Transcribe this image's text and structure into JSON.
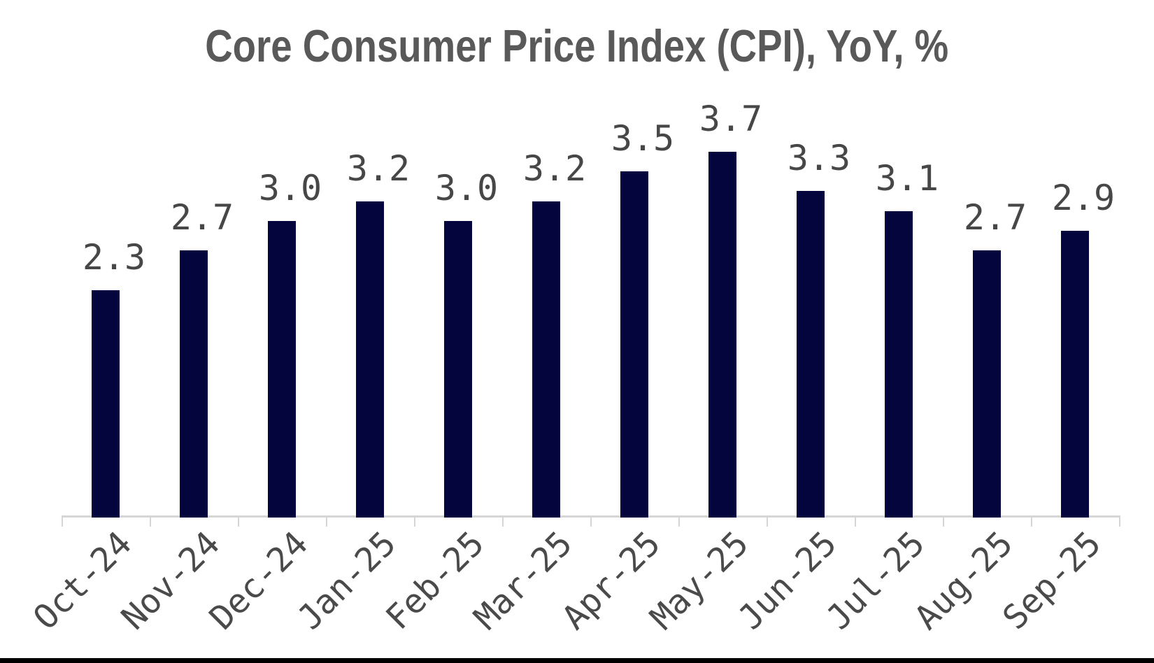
{
  "chart_data": {
    "type": "bar",
    "title": "Core Consumer Price Index (CPI), YoY, %",
    "categories": [
      "Oct-24",
      "Nov-24",
      "Dec-24",
      "Jan-25",
      "Feb-25",
      "Mar-25",
      "Apr-25",
      "May-25",
      "Jun-25",
      "Jul-25",
      "Aug-25",
      "Sep-25"
    ],
    "values": [
      2.3,
      2.7,
      3.0,
      3.2,
      3.0,
      3.2,
      3.5,
      3.7,
      3.3,
      3.1,
      2.7,
      2.9
    ],
    "value_labels": [
      "2.3",
      "2.7",
      "3.0",
      "3.2",
      "3.0",
      "3.2",
      "3.5",
      "3.7",
      "3.3",
      "3.1",
      "2.7",
      "2.9"
    ],
    "xlabel": "",
    "ylabel": "",
    "ylim": [
      0,
      4.2
    ],
    "grid": false,
    "legend": null,
    "bar_labels_position": "above",
    "x_tick_rotation_deg": 45,
    "colors": {
      "bar": "#05053e",
      "title": "#595959",
      "value_labels": "#474747",
      "x_tick_labels": "#4a4a4a",
      "axis": "#d6d6d6",
      "bottom_strip": "#000000",
      "background": "#ffffff"
    }
  }
}
